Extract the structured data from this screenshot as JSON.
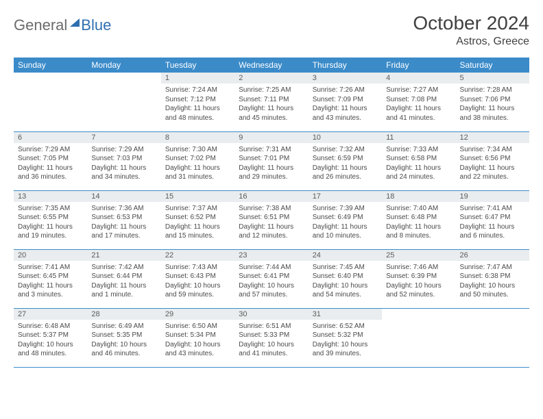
{
  "logo": {
    "word1": "General",
    "word2": "Blue"
  },
  "title": "October 2024",
  "subtitle": "Astros, Greece",
  "colors": {
    "header_bg": "#3b8bc9",
    "header_text": "#ffffff",
    "daynum_bg": "#e9edef",
    "border": "#3b8bc9",
    "body_text": "#4a4a4a",
    "title_text": "#404040",
    "logo_gray": "#6b6b6b",
    "logo_blue": "#2f6fb0",
    "page_bg": "#ffffff"
  },
  "fonts": {
    "title_size": 28,
    "subtitle_size": 16,
    "header_size": 12,
    "daynum_size": 11,
    "body_size": 10
  },
  "weekdays": [
    "Sunday",
    "Monday",
    "Tuesday",
    "Wednesday",
    "Thursday",
    "Friday",
    "Saturday"
  ],
  "grid": [
    [
      {
        "empty": true
      },
      {
        "empty": true
      },
      {
        "num": "1",
        "l1": "Sunrise: 7:24 AM",
        "l2": "Sunset: 7:12 PM",
        "l3": "Daylight: 11 hours",
        "l4": "and 48 minutes."
      },
      {
        "num": "2",
        "l1": "Sunrise: 7:25 AM",
        "l2": "Sunset: 7:11 PM",
        "l3": "Daylight: 11 hours",
        "l4": "and 45 minutes."
      },
      {
        "num": "3",
        "l1": "Sunrise: 7:26 AM",
        "l2": "Sunset: 7:09 PM",
        "l3": "Daylight: 11 hours",
        "l4": "and 43 minutes."
      },
      {
        "num": "4",
        "l1": "Sunrise: 7:27 AM",
        "l2": "Sunset: 7:08 PM",
        "l3": "Daylight: 11 hours",
        "l4": "and 41 minutes."
      },
      {
        "num": "5",
        "l1": "Sunrise: 7:28 AM",
        "l2": "Sunset: 7:06 PM",
        "l3": "Daylight: 11 hours",
        "l4": "and 38 minutes."
      }
    ],
    [
      {
        "num": "6",
        "l1": "Sunrise: 7:29 AM",
        "l2": "Sunset: 7:05 PM",
        "l3": "Daylight: 11 hours",
        "l4": "and 36 minutes."
      },
      {
        "num": "7",
        "l1": "Sunrise: 7:29 AM",
        "l2": "Sunset: 7:03 PM",
        "l3": "Daylight: 11 hours",
        "l4": "and 34 minutes."
      },
      {
        "num": "8",
        "l1": "Sunrise: 7:30 AM",
        "l2": "Sunset: 7:02 PM",
        "l3": "Daylight: 11 hours",
        "l4": "and 31 minutes."
      },
      {
        "num": "9",
        "l1": "Sunrise: 7:31 AM",
        "l2": "Sunset: 7:01 PM",
        "l3": "Daylight: 11 hours",
        "l4": "and 29 minutes."
      },
      {
        "num": "10",
        "l1": "Sunrise: 7:32 AM",
        "l2": "Sunset: 6:59 PM",
        "l3": "Daylight: 11 hours",
        "l4": "and 26 minutes."
      },
      {
        "num": "11",
        "l1": "Sunrise: 7:33 AM",
        "l2": "Sunset: 6:58 PM",
        "l3": "Daylight: 11 hours",
        "l4": "and 24 minutes."
      },
      {
        "num": "12",
        "l1": "Sunrise: 7:34 AM",
        "l2": "Sunset: 6:56 PM",
        "l3": "Daylight: 11 hours",
        "l4": "and 22 minutes."
      }
    ],
    [
      {
        "num": "13",
        "l1": "Sunrise: 7:35 AM",
        "l2": "Sunset: 6:55 PM",
        "l3": "Daylight: 11 hours",
        "l4": "and 19 minutes."
      },
      {
        "num": "14",
        "l1": "Sunrise: 7:36 AM",
        "l2": "Sunset: 6:53 PM",
        "l3": "Daylight: 11 hours",
        "l4": "and 17 minutes."
      },
      {
        "num": "15",
        "l1": "Sunrise: 7:37 AM",
        "l2": "Sunset: 6:52 PM",
        "l3": "Daylight: 11 hours",
        "l4": "and 15 minutes."
      },
      {
        "num": "16",
        "l1": "Sunrise: 7:38 AM",
        "l2": "Sunset: 6:51 PM",
        "l3": "Daylight: 11 hours",
        "l4": "and 12 minutes."
      },
      {
        "num": "17",
        "l1": "Sunrise: 7:39 AM",
        "l2": "Sunset: 6:49 PM",
        "l3": "Daylight: 11 hours",
        "l4": "and 10 minutes."
      },
      {
        "num": "18",
        "l1": "Sunrise: 7:40 AM",
        "l2": "Sunset: 6:48 PM",
        "l3": "Daylight: 11 hours",
        "l4": "and 8 minutes."
      },
      {
        "num": "19",
        "l1": "Sunrise: 7:41 AM",
        "l2": "Sunset: 6:47 PM",
        "l3": "Daylight: 11 hours",
        "l4": "and 6 minutes."
      }
    ],
    [
      {
        "num": "20",
        "l1": "Sunrise: 7:41 AM",
        "l2": "Sunset: 6:45 PM",
        "l3": "Daylight: 11 hours",
        "l4": "and 3 minutes."
      },
      {
        "num": "21",
        "l1": "Sunrise: 7:42 AM",
        "l2": "Sunset: 6:44 PM",
        "l3": "Daylight: 11 hours",
        "l4": "and 1 minute."
      },
      {
        "num": "22",
        "l1": "Sunrise: 7:43 AM",
        "l2": "Sunset: 6:43 PM",
        "l3": "Daylight: 10 hours",
        "l4": "and 59 minutes."
      },
      {
        "num": "23",
        "l1": "Sunrise: 7:44 AM",
        "l2": "Sunset: 6:41 PM",
        "l3": "Daylight: 10 hours",
        "l4": "and 57 minutes."
      },
      {
        "num": "24",
        "l1": "Sunrise: 7:45 AM",
        "l2": "Sunset: 6:40 PM",
        "l3": "Daylight: 10 hours",
        "l4": "and 54 minutes."
      },
      {
        "num": "25",
        "l1": "Sunrise: 7:46 AM",
        "l2": "Sunset: 6:39 PM",
        "l3": "Daylight: 10 hours",
        "l4": "and 52 minutes."
      },
      {
        "num": "26",
        "l1": "Sunrise: 7:47 AM",
        "l2": "Sunset: 6:38 PM",
        "l3": "Daylight: 10 hours",
        "l4": "and 50 minutes."
      }
    ],
    [
      {
        "num": "27",
        "l1": "Sunrise: 6:48 AM",
        "l2": "Sunset: 5:37 PM",
        "l3": "Daylight: 10 hours",
        "l4": "and 48 minutes."
      },
      {
        "num": "28",
        "l1": "Sunrise: 6:49 AM",
        "l2": "Sunset: 5:35 PM",
        "l3": "Daylight: 10 hours",
        "l4": "and 46 minutes."
      },
      {
        "num": "29",
        "l1": "Sunrise: 6:50 AM",
        "l2": "Sunset: 5:34 PM",
        "l3": "Daylight: 10 hours",
        "l4": "and 43 minutes."
      },
      {
        "num": "30",
        "l1": "Sunrise: 6:51 AM",
        "l2": "Sunset: 5:33 PM",
        "l3": "Daylight: 10 hours",
        "l4": "and 41 minutes."
      },
      {
        "num": "31",
        "l1": "Sunrise: 6:52 AM",
        "l2": "Sunset: 5:32 PM",
        "l3": "Daylight: 10 hours",
        "l4": "and 39 minutes."
      },
      {
        "empty": true
      },
      {
        "empty": true
      }
    ]
  ]
}
